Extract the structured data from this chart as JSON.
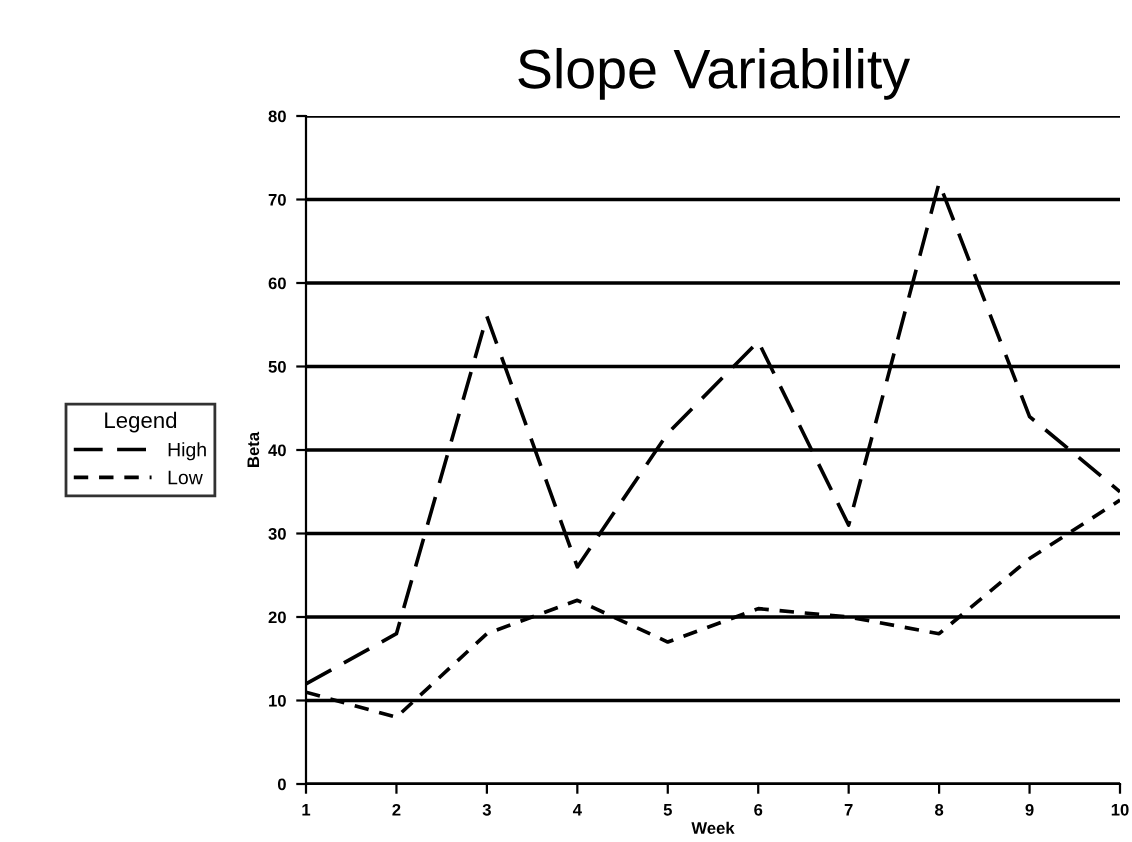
{
  "chart_data": {
    "type": "line",
    "title": "Slope Variability",
    "xlabel": "Week",
    "ylabel": "Beta",
    "legend_title": "Legend",
    "x": [
      1,
      2,
      3,
      4,
      5,
      6,
      7,
      8,
      9,
      10
    ],
    "series": [
      {
        "name": "High",
        "color": "#000000",
        "line_style": "dashed",
        "values": [
          12,
          18,
          56,
          26,
          42,
          53,
          31,
          72,
          44,
          35
        ]
      },
      {
        "name": "Low",
        "color": "#000000",
        "line_style": "dashed",
        "values": [
          11,
          8,
          18,
          22,
          17,
          21,
          20,
          18,
          27,
          34
        ]
      }
    ],
    "xlim": [
      1,
      10
    ],
    "xticks": [
      1,
      2,
      3,
      4,
      5,
      6,
      7,
      8,
      9,
      10
    ],
    "ylim": [
      0,
      80
    ],
    "yticks": [
      0,
      10,
      20,
      30,
      40,
      50,
      60,
      70,
      80
    ],
    "grid": "y",
    "legend": "left",
    "marker": "none"
  }
}
